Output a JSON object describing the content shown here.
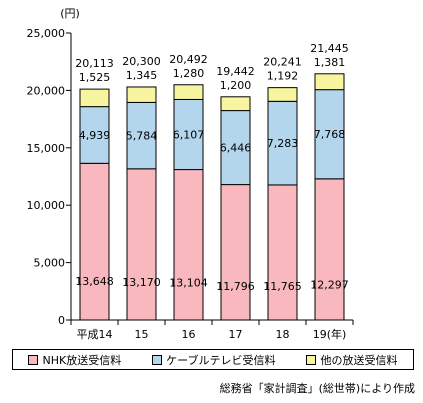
{
  "chart_data": {
    "type": "bar",
    "stacked": true,
    "unit_label": "(円)",
    "x_suffix": "(年)",
    "categories": [
      "平成14",
      "15",
      "16",
      "17",
      "18",
      "19"
    ],
    "series": [
      {
        "name": "NHK放送受信料",
        "color": "#f9b8bd",
        "values": [
          13648,
          13170,
          13104,
          11796,
          11765,
          12297
        ],
        "labels": [
          "13,648",
          "13,170",
          "13,104",
          "11,796",
          "11,765",
          "12,297"
        ]
      },
      {
        "name": "ケーブルテレビ受信料",
        "color": "#b3d6ec",
        "values": [
          4939,
          5784,
          6107,
          6446,
          7283,
          7768
        ],
        "labels": [
          "4,939",
          "5,784",
          "6,107",
          "6,446",
          "7,283",
          "7,768"
        ]
      },
      {
        "name": "他の放送受信料",
        "color": "#f8f5a0",
        "values": [
          1525,
          1345,
          1280,
          1200,
          1192,
          1381
        ],
        "labels": [
          "1,525",
          "1,345",
          "1,280",
          "1,200",
          "1,192",
          "1,381"
        ]
      }
    ],
    "totals": [
      20113,
      20300,
      20492,
      19442,
      20241,
      21445
    ],
    "total_labels": [
      "20,113",
      "20,300",
      "20,492",
      "19,442",
      "20,241",
      "21,445"
    ],
    "ylim": [
      0,
      25000
    ],
    "yticks": [
      0,
      5000,
      10000,
      15000,
      20000,
      25000
    ],
    "ytick_labels": [
      "0",
      "5,000",
      "10,000",
      "15,000",
      "20,000",
      "25,000"
    ],
    "grid": false,
    "legend_position": "bottom"
  },
  "source": "総務省「家計調査」(総世帯)により作成"
}
